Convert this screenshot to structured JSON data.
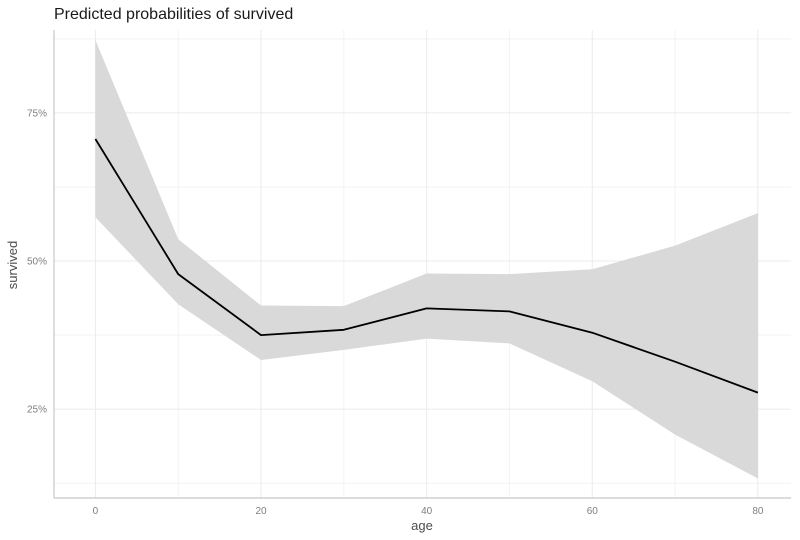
{
  "chart_data": {
    "type": "line",
    "title": "Predicted probabilities of survived",
    "xlabel": "age",
    "ylabel": "survived",
    "xlim": [
      -5,
      84
    ],
    "ylim": [
      0.1,
      0.89
    ],
    "x_ticks": [
      0,
      20,
      40,
      60,
      80
    ],
    "x_tick_labels": [
      "0",
      "20",
      "40",
      "60",
      "80"
    ],
    "x_minor_ticks": [
      10,
      30,
      50,
      70
    ],
    "y_ticks": [
      0.25,
      0.5,
      0.75
    ],
    "y_tick_labels": [
      "25%",
      "50%",
      "75%"
    ],
    "y_minor_ticks": [
      0.125,
      0.375,
      0.625,
      0.875
    ],
    "grid": true,
    "legend": "none",
    "colors": {
      "line": "#000000",
      "ribbon": "#d9d9d9"
    },
    "series": [
      {
        "x": [
          0,
          10,
          20,
          30,
          40,
          50,
          60,
          70,
          80
        ],
        "y": [
          0.706,
          0.478,
          0.375,
          0.384,
          0.42,
          0.415,
          0.379,
          0.33,
          0.278
        ],
        "conf_low": [
          0.574,
          0.427,
          0.333,
          0.35,
          0.369,
          0.361,
          0.297,
          0.207,
          0.133
        ],
        "conf_high": [
          0.873,
          0.537,
          0.425,
          0.424,
          0.479,
          0.478,
          0.486,
          0.526,
          0.581
        ]
      }
    ]
  }
}
